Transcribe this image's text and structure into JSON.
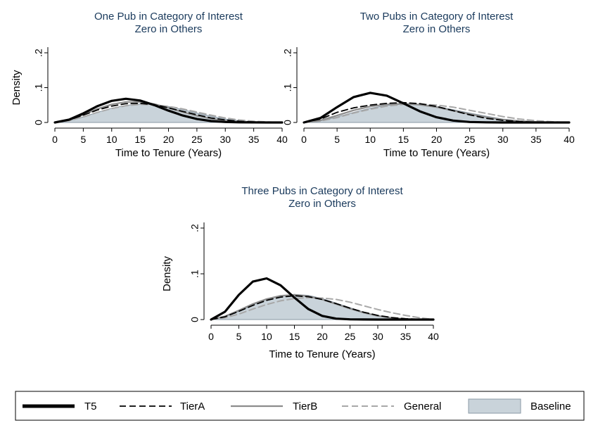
{
  "chart_data": {
    "type": "area",
    "x_label": "Time to Tenure (Years)",
    "y_label": "Density",
    "x_ticks": [
      0,
      5,
      10,
      15,
      20,
      25,
      30,
      35,
      40
    ],
    "y_ticks": [
      0,
      0.1,
      0.2
    ],
    "y_tick_labels": [
      "0",
      ".1",
      ".2"
    ],
    "xlim": [
      0,
      40
    ],
    "ylim": [
      0,
      0.2
    ],
    "legend": {
      "position": "bottom",
      "entries": [
        {
          "name": "T5",
          "style": "solid",
          "color": "#000000"
        },
        {
          "name": "TierA",
          "style": "dashed",
          "color": "#000000"
        },
        {
          "name": "TierB",
          "style": "solid",
          "color": "#8c8c8c"
        },
        {
          "name": "General",
          "style": "dashed",
          "color": "#a8a8a8"
        },
        {
          "name": "Baseline",
          "style": "area",
          "color": "#c9d3da"
        }
      ]
    },
    "panels": [
      {
        "title": [
          "One Pub in Category of Interest",
          "Zero in Others"
        ],
        "x": [
          0,
          2.5,
          5,
          7.5,
          10,
          12.5,
          15,
          17.5,
          20,
          22.5,
          25,
          27.5,
          30,
          32.5,
          35,
          37.5,
          40
        ],
        "series": [
          {
            "name": "T5",
            "values": [
              0,
              0.008,
              0.026,
              0.047,
              0.062,
              0.068,
              0.063,
              0.05,
              0.034,
              0.02,
              0.01,
              0.004,
              0.0015,
              0.0005,
              0.0002,
              0.0001,
              0
            ]
          },
          {
            "name": "TierA",
            "values": [
              0,
              0.007,
              0.021,
              0.036,
              0.047,
              0.054,
              0.055,
              0.051,
              0.042,
              0.032,
              0.022,
              0.013,
              0.007,
              0.0035,
              0.0015,
              0.0005,
              0
            ]
          },
          {
            "name": "TierB",
            "values": [
              0,
              0.007,
              0.022,
              0.039,
              0.052,
              0.059,
              0.059,
              0.053,
              0.042,
              0.03,
              0.019,
              0.011,
              0.0055,
              0.0025,
              0.001,
              0.0003,
              0
            ]
          },
          {
            "name": "General",
            "values": [
              0,
              0.005,
              0.016,
              0.029,
              0.04,
              0.048,
              0.052,
              0.051,
              0.046,
              0.039,
              0.03,
              0.021,
              0.013,
              0.007,
              0.0035,
              0.0015,
              0
            ]
          },
          {
            "name": "Baseline",
            "values": [
              0,
              0.005,
              0.016,
              0.029,
              0.041,
              0.049,
              0.053,
              0.052,
              0.046,
              0.037,
              0.027,
              0.018,
              0.01,
              0.005,
              0.002,
              0.0007,
              0
            ]
          }
        ]
      },
      {
        "title": [
          "Two Pubs in Category of Interest",
          "Zero in Others"
        ],
        "x": [
          0,
          2.5,
          5,
          7.5,
          10,
          12.5,
          15,
          17.5,
          20,
          22.5,
          25,
          27.5,
          30,
          32.5,
          35,
          37.5,
          40
        ],
        "series": [
          {
            "name": "T5",
            "values": [
              0,
              0.013,
              0.044,
              0.073,
              0.085,
              0.077,
              0.055,
              0.032,
              0.015,
              0.0055,
              0.0015,
              0.0004,
              0.0001,
              0,
              0,
              0,
              0
            ]
          },
          {
            "name": "TierA",
            "values": [
              0,
              0.01,
              0.029,
              0.042,
              0.05,
              0.055,
              0.057,
              0.054,
              0.046,
              0.034,
              0.022,
              0.012,
              0.006,
              0.0025,
              0.001,
              0.0003,
              0
            ]
          },
          {
            "name": "TierB",
            "values": [
              0,
              0.006,
              0.02,
              0.035,
              0.046,
              0.052,
              0.054,
              0.051,
              0.044,
              0.034,
              0.024,
              0.015,
              0.008,
              0.004,
              0.0016,
              0.0005,
              0
            ]
          },
          {
            "name": "General",
            "values": [
              0,
              0.004,
              0.014,
              0.027,
              0.038,
              0.047,
              0.052,
              0.053,
              0.05,
              0.044,
              0.035,
              0.026,
              0.017,
              0.01,
              0.005,
              0.002,
              0
            ]
          },
          {
            "name": "Baseline",
            "values": [
              0,
              0.005,
              0.016,
              0.029,
              0.041,
              0.049,
              0.053,
              0.052,
              0.046,
              0.037,
              0.027,
              0.018,
              0.01,
              0.005,
              0.002,
              0.0007,
              0
            ]
          }
        ]
      },
      {
        "title": [
          "Three Pubs in Category of Interest",
          "Zero in Others"
        ],
        "x": [
          0,
          2.5,
          5,
          7.5,
          10,
          12.5,
          15,
          17.5,
          20,
          22.5,
          25,
          27.5,
          30,
          32.5,
          35,
          37.5,
          40
        ],
        "series": [
          {
            "name": "T5",
            "values": [
              0,
              0.017,
              0.054,
              0.083,
              0.09,
              0.075,
              0.048,
              0.023,
              0.008,
              0.002,
              0.0004,
              0.0001,
              0,
              0,
              0,
              0,
              0
            ]
          },
          {
            "name": "TierA",
            "values": [
              0,
              0.006,
              0.018,
              0.031,
              0.042,
              0.049,
              0.052,
              0.05,
              0.044,
              0.035,
              0.025,
              0.016,
              0.009,
              0.0045,
              0.0018,
              0.0006,
              0
            ]
          },
          {
            "name": "TierB",
            "values": [
              0,
              0.007,
              0.02,
              0.034,
              0.045,
              0.052,
              0.054,
              0.051,
              0.044,
              0.034,
              0.024,
              0.015,
              0.008,
              0.0035,
              0.0013,
              0.0004,
              0
            ]
          },
          {
            "name": "General",
            "values": [
              0,
              0.004,
              0.012,
              0.023,
              0.033,
              0.041,
              0.046,
              0.048,
              0.047,
              0.044,
              0.038,
              0.03,
              0.022,
              0.015,
              0.009,
              0.004,
              0
            ]
          },
          {
            "name": "Baseline",
            "values": [
              0,
              0.006,
              0.018,
              0.032,
              0.044,
              0.052,
              0.055,
              0.053,
              0.046,
              0.036,
              0.026,
              0.016,
              0.009,
              0.0045,
              0.0018,
              0.0006,
              0
            ]
          }
        ]
      }
    ]
  },
  "colors": {
    "title": "#1a3a5c",
    "baseline_fill": "#c9d3da",
    "baseline_edge": "#8a99a6",
    "tierb": "#8c8c8c",
    "general": "#a8a8a8"
  }
}
